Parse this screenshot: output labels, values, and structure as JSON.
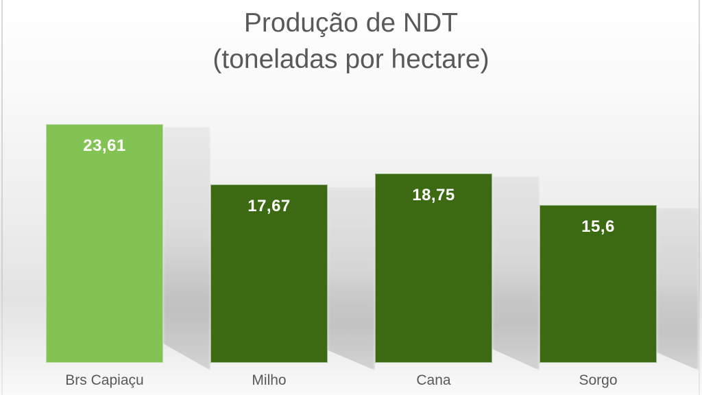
{
  "chart_data": {
    "type": "bar",
    "title": "Produção de NDT",
    "subtitle": "(toneladas por hectare)",
    "categories": [
      "Brs Capiaçu",
      "Milho",
      "Cana",
      "Sorgo"
    ],
    "values": [
      23.61,
      17.67,
      18.75,
      15.6
    ],
    "value_labels": [
      "23,61",
      "17,67",
      "18,75",
      "15,6"
    ],
    "series": [
      {
        "name": "Produção de NDT (toneladas por hectare)",
        "values": [
          23.61,
          17.67,
          18.75,
          15.6
        ]
      }
    ],
    "xlabel": "",
    "ylabel": "",
    "ylim": [
      0,
      24
    ],
    "grid": false,
    "legend": false,
    "axes_visible": false,
    "data_labels_position": "inside-top",
    "bar_colors": [
      "#83C353",
      "#3C6A12",
      "#3C6A12",
      "#3C6A12"
    ],
    "colors": {
      "highlight_bar": "#83C353",
      "default_bar": "#3C6A12",
      "value_label_text": "#FFFFFF",
      "category_label_text": "#595959",
      "title_text": "#595959"
    }
  }
}
